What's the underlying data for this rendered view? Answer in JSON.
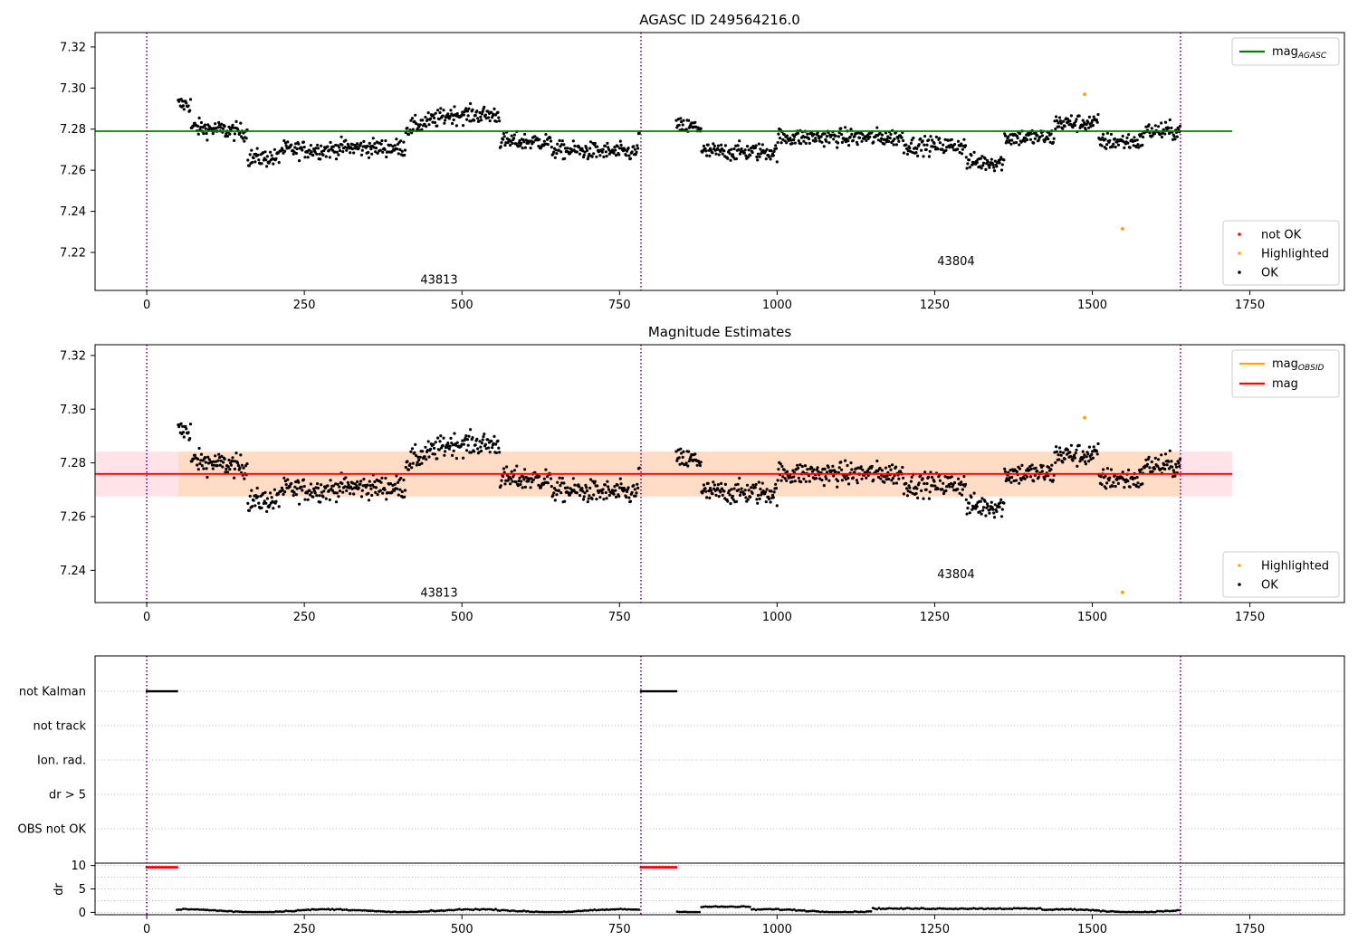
{
  "colors": {
    "ok": "#000000",
    "not_ok": "#ff0000",
    "highlighted": "#ffa500",
    "agasc_line": "#008000",
    "mag_line": "#ff0000",
    "mag_obsid_line": "#ffa500",
    "band_total": "#ffc0cb",
    "band_obsid": "#ffdab9",
    "obsid_divider": "#800080",
    "grid": "#b0b0b0"
  },
  "chart_data": [
    {
      "type": "scatter",
      "title": "AGASC ID 249564216.0",
      "xlim": [
        -82,
        1900
      ],
      "ylim": [
        7.2015,
        7.327
      ],
      "x_ticks": [
        0,
        250,
        500,
        750,
        1000,
        1250,
        1500,
        1750
      ],
      "y_ticks": [
        7.22,
        7.24,
        7.26,
        7.28,
        7.3,
        7.32
      ],
      "obsid_boundaries": [
        0,
        784,
        1640
      ],
      "obsid_labels": [
        {
          "text": "43813",
          "x": 392,
          "y": 7.2065
        },
        {
          "text": "43804",
          "x": 1212,
          "y": 7.2155
        }
      ],
      "mag_agasc": 7.279,
      "mag_agasc_xrange": [
        -82,
        1722
      ],
      "highlighted_points": [
        {
          "x": 1488,
          "y": 7.297
        },
        {
          "x": 1548,
          "y": 7.2315
        }
      ],
      "legend_top": [
        {
          "label": "mag",
          "sub": "AGASC",
          "kind": "line",
          "color": "#008000"
        }
      ],
      "legend_bottom": [
        {
          "label": "not OK",
          "kind": "dot",
          "color": "#ff0000"
        },
        {
          "label": "Highlighted",
          "kind": "dot",
          "color": "#ffa500"
        },
        {
          "label": "OK",
          "kind": "dot",
          "color": "#000000"
        }
      ]
    },
    {
      "type": "scatter",
      "title": "Magnitude Estimates",
      "xlim": [
        -82,
        1900
      ],
      "ylim": [
        7.228,
        7.324
      ],
      "x_ticks": [
        0,
        250,
        500,
        750,
        1000,
        1250,
        1500,
        1750
      ],
      "y_ticks": [
        7.24,
        7.26,
        7.28,
        7.3,
        7.32
      ],
      "obsid_boundaries": [
        0,
        784,
        1640
      ],
      "obsid_labels": [
        {
          "text": "43813",
          "x": 392,
          "y": 7.2315
        },
        {
          "text": "43804",
          "x": 1212,
          "y": 7.2385
        }
      ],
      "mag": 7.2759,
      "mag_band": [
        7.2675,
        7.2842
      ],
      "mag_band_xrange": [
        -82,
        1722
      ],
      "mag_obsid": 7.2759,
      "highlighted_points": [
        {
          "x": 1488,
          "y": 7.2968
        },
        {
          "x": 1548,
          "y": 7.2318
        }
      ],
      "legend_top": [
        {
          "label": "mag",
          "sub": "OBSID",
          "kind": "line",
          "color": "#ffa500"
        },
        {
          "label": "mag",
          "sub": "",
          "kind": "line",
          "color": "#ff0000"
        }
      ],
      "legend_bottom": [
        {
          "label": "Highlighted",
          "kind": "dot",
          "color": "#ffa500"
        },
        {
          "label": "OK",
          "kind": "dot",
          "color": "#000000"
        }
      ]
    },
    {
      "type": "scatter",
      "title": "",
      "xlim": [
        -82,
        1900
      ],
      "x_ticks": [
        0,
        250,
        500,
        750,
        1000,
        1250,
        1500,
        1750
      ],
      "obsid_boundaries": [
        0,
        784,
        1640
      ],
      "flag_categories": [
        "not Kalman",
        "not track",
        "Ion. rad.",
        "dr > 5",
        "OBS not OK"
      ],
      "flag_segments": [
        {
          "category": "not Kalman",
          "x": [
            0,
            48
          ]
        },
        {
          "category": "not Kalman",
          "x": [
            784,
            840
          ]
        }
      ],
      "dr_ylabel": "dr",
      "dr_ylim": [
        -0.5,
        10.5
      ],
      "dr_ticks": [
        0,
        5,
        10
      ],
      "dr_high_segments": [
        {
          "x": [
            0,
            48
          ],
          "dr": 9.6
        },
        {
          "x": [
            784,
            840
          ],
          "dr": 9.6
        }
      ]
    }
  ]
}
